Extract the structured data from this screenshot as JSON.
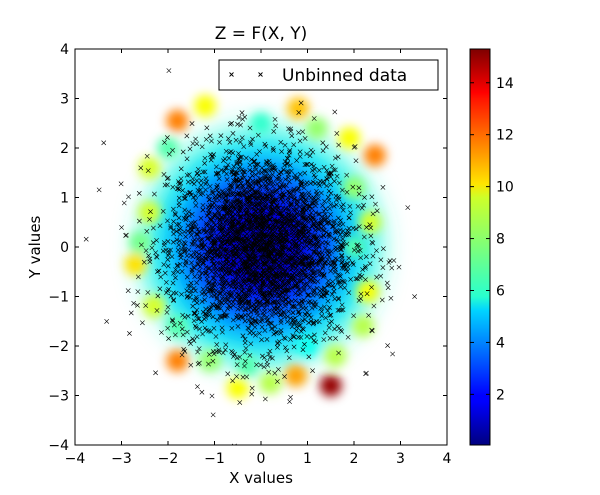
{
  "chart_data": {
    "type": "heatmap",
    "title": "Z = F(X, Y)",
    "xlabel": "X values",
    "ylabel": "Y values",
    "xlim": [
      -4,
      4
    ],
    "ylim": [
      -4,
      4
    ],
    "x_ticks": [
      -4,
      -3,
      -2,
      -1,
      0,
      1,
      2,
      3,
      4
    ],
    "y_ticks": [
      -4,
      -3,
      -2,
      -1,
      0,
      1,
      2,
      3,
      4
    ],
    "x_tick_labels": [
      "−4",
      "−3",
      "−2",
      "−1",
      "0",
      "1",
      "2",
      "3",
      "4"
    ],
    "y_tick_labels": [
      "−4",
      "−3",
      "−2",
      "−1",
      "0",
      "1",
      "2",
      "3",
      "4"
    ],
    "grid": false,
    "legend": {
      "position": "top-right",
      "entries": [
        {
          "label": "Unbinned data",
          "marker": "x",
          "color": "#000000"
        }
      ]
    },
    "colorbar": {
      "colormap": "jet",
      "range": [
        0.05,
        15.3
      ],
      "ticks": [
        2,
        4,
        6,
        8,
        10,
        12,
        14
      ],
      "tick_labels": [
        "2",
        "4",
        "6",
        "8",
        "10",
        "12",
        "14"
      ]
    },
    "scatter": {
      "label": "Unbinned data",
      "marker": "x",
      "color": "#000000",
      "count": 3000,
      "distribution": "bivariate normal",
      "mean": [
        0,
        0
      ],
      "std": [
        1,
        1
      ]
    },
    "hot_spots": [
      {
        "x": 1.5,
        "y": -2.8,
        "z": 15.0
      },
      {
        "x": -1.8,
        "y": 2.55,
        "z": 11.5
      },
      {
        "x": 2.45,
        "y": 1.85,
        "z": 11.5
      },
      {
        "x": 0.75,
        "y": -2.6,
        "z": 11.0
      },
      {
        "x": -1.8,
        "y": -2.3,
        "z": 11.5
      },
      {
        "x": 0.8,
        "y": 2.8,
        "z": 10.5
      },
      {
        "x": -1.2,
        "y": 2.85,
        "z": 9.5
      },
      {
        "x": -2.7,
        "y": -0.35,
        "z": 10.0
      },
      {
        "x": -2.4,
        "y": 0.7,
        "z": 9.0
      },
      {
        "x": 2.35,
        "y": 0.5,
        "z": 9.0
      },
      {
        "x": 2.3,
        "y": -0.9,
        "z": 9.5
      },
      {
        "x": -0.5,
        "y": -2.85,
        "z": 9.5
      },
      {
        "x": 0.2,
        "y": -2.75,
        "z": 8.5
      },
      {
        "x": -2.3,
        "y": -1.2,
        "z": 9.0
      },
      {
        "x": 1.9,
        "y": 2.2,
        "z": 9.5
      },
      {
        "x": -2.4,
        "y": 1.6,
        "z": 9.0
      },
      {
        "x": 2.2,
        "y": -1.6,
        "z": 8.5
      },
      {
        "x": -1.1,
        "y": -2.3,
        "z": 8.0
      },
      {
        "x": 1.6,
        "y": -2.2,
        "z": 8.5
      },
      {
        "x": 1.2,
        "y": 2.4,
        "z": 8.0
      },
      {
        "x": -1.8,
        "y": -1.6,
        "z": 7.0
      },
      {
        "x": -2.0,
        "y": 2.0,
        "z": 7.0
      },
      {
        "x": 2.0,
        "y": 1.2,
        "z": 8.0
      },
      {
        "x": -2.6,
        "y": 0.1,
        "z": 7.5
      },
      {
        "x": 0.0,
        "y": 2.5,
        "z": 6.5
      },
      {
        "x": -0.3,
        "y": -2.4,
        "z": 7.0
      },
      {
        "x": 1.0,
        "y": -2.0,
        "z": 6.0
      },
      {
        "x": 2.0,
        "y": 0.0,
        "z": 7.0
      }
    ]
  }
}
